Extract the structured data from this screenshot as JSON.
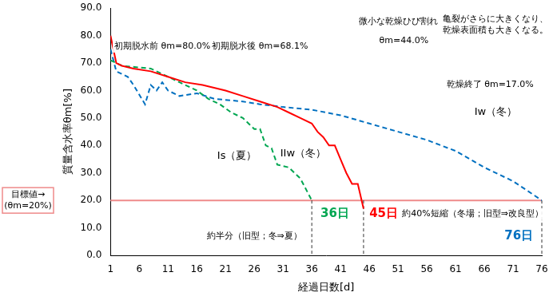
{
  "chart_data": {
    "type": "line",
    "x_label": "経過日数[d]",
    "y_label": "質量含水率θm[%]",
    "xlim": [
      1,
      76
    ],
    "xticks": [
      1,
      6,
      11,
      16,
      21,
      26,
      31,
      36,
      41,
      46,
      51,
      56,
      61,
      66,
      71,
      76
    ],
    "ylim": [
      0,
      90
    ],
    "yticks": [
      {
        "value": 0,
        "label": "0.0"
      },
      {
        "value": 10,
        "label": "10.0"
      },
      {
        "value": 20,
        "label": "20.0"
      },
      {
        "value": 30,
        "label": "30.0"
      },
      {
        "value": 40,
        "label": "40.0"
      },
      {
        "value": 50,
        "label": "50.0"
      },
      {
        "value": 60,
        "label": "60.0"
      },
      {
        "value": 70,
        "label": "70.0"
      },
      {
        "value": 80,
        "label": "80.0"
      },
      {
        "value": 90,
        "label": "90.0"
      }
    ],
    "grid": false,
    "series": [
      {
        "name": "IIw（冬）",
        "color": "#ff0000",
        "line_style": "solid",
        "marker": "none",
        "name_x": 34.5,
        "name_y": 37,
        "x": [
          1,
          2,
          3,
          5,
          8,
          11,
          14,
          17,
          19,
          21,
          24,
          27,
          30,
          32,
          34,
          36,
          37,
          38,
          39,
          40,
          41,
          42,
          43,
          44,
          45
        ],
        "values": [
          80,
          70,
          69,
          68,
          67,
          65,
          63,
          62,
          61,
          60,
          58,
          56,
          54,
          52,
          50,
          48,
          45,
          43,
          40,
          40,
          35,
          30,
          26,
          26,
          17
        ]
      },
      {
        "name": "Is（夏）",
        "color": "#00a651",
        "line_style": "dashed",
        "marker": "none",
        "name_x": 23,
        "name_y": 36,
        "x": [
          1,
          3,
          8,
          11,
          13,
          16,
          18,
          20,
          22,
          24,
          26,
          27,
          28,
          29,
          30,
          32,
          34,
          36
        ],
        "values": [
          71,
          69,
          68,
          65,
          63,
          60,
          57,
          55,
          52,
          50,
          46,
          46,
          40,
          39,
          33,
          32,
          28,
          20
        ]
      },
      {
        "name": "Iw（冬）",
        "color": "#0070c0",
        "line_style": "dashed",
        "marker": "none",
        "name_x": 68,
        "name_y": 52,
        "x": [
          1,
          2,
          4,
          5,
          7,
          8,
          9,
          10,
          11,
          13,
          16,
          19,
          24,
          27,
          31,
          36,
          41,
          46,
          51,
          56,
          61,
          66,
          71,
          76
        ],
        "values": [
          75,
          67,
          65,
          62,
          55,
          62,
          60,
          63,
          60,
          58,
          59,
          57,
          56,
          55,
          54,
          53,
          51,
          48,
          45,
          42,
          38,
          32,
          27,
          20
        ]
      }
    ],
    "target": {
      "value": 20,
      "label": "目標値→",
      "sublabel": "(θm=20%)",
      "color": "#ef8a8a"
    },
    "markers": [
      {
        "x": 36,
        "label": "36日",
        "color": "#00a651",
        "label_x": 40,
        "label_y": 15
      },
      {
        "x": 45,
        "label": "45日",
        "color": "#ff0000",
        "label_x": 48.5,
        "label_y": 15
      },
      {
        "x": 76,
        "label": "76日",
        "color": "#0070c0",
        "label_x": 72,
        "label_y": 7
      }
    ],
    "annotations": [
      {
        "text": "初期脱水前 θm=80.0%",
        "x": 10,
        "y": 76
      },
      {
        "text": "初期脱水後 θm=68.1%",
        "x": 27,
        "y": 76
      },
      {
        "text": "微小な乾燥ひび割れ",
        "x": 51,
        "y": 85
      },
      {
        "text": "θm=44.0%",
        "x": 52,
        "y": 78
      },
      {
        "text": "亀裂がさらに大きくなり、乾燥表面積も大きくなる。",
        "x": 68,
        "y": 84
      },
      {
        "text": "乾燥終了 θm=17.0%",
        "x": 67,
        "y": 62
      },
      {
        "text": "約40%短縮（冬場；旧型⇒改良型）",
        "x": 64,
        "y": 15
      },
      {
        "text": "約半分（旧型；冬⇒夏）",
        "x": 26,
        "y": 7
      }
    ]
  }
}
